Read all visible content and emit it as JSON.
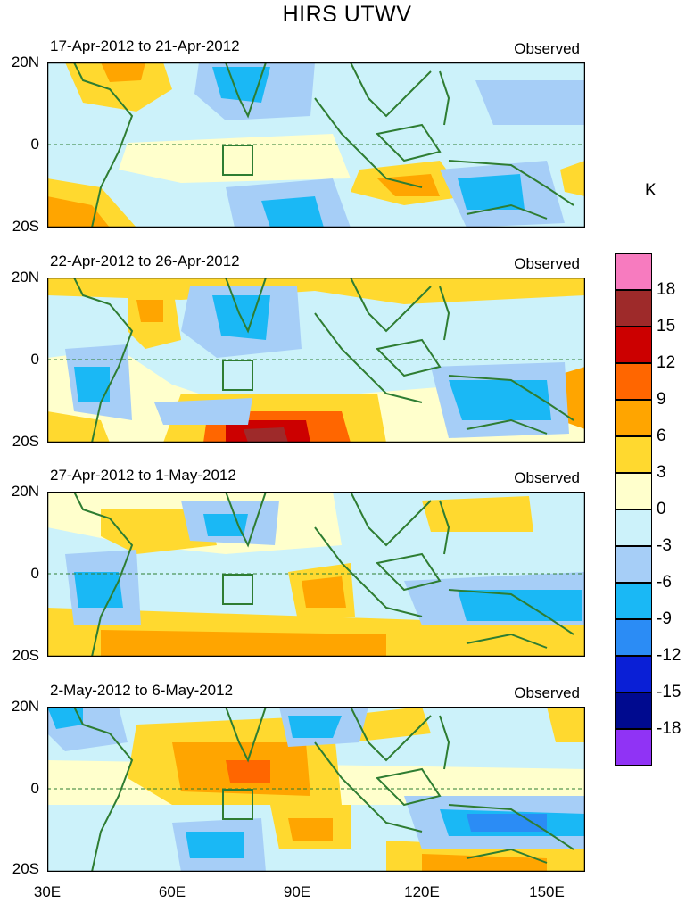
{
  "title": "HIRS UTWV",
  "unit": "K",
  "y_axis_labels": [
    "20N",
    "0",
    "20S"
  ],
  "x_axis_labels": [
    "30E",
    "60E",
    "90E",
    "120E",
    "150E"
  ],
  "panels": [
    {
      "date_range": "17-Apr-2012 to 21-Apr-2012",
      "type": "Observed"
    },
    {
      "date_range": "22-Apr-2012 to 26-Apr-2012",
      "type": "Observed"
    },
    {
      "date_range": "27-Apr-2012 to 1-May-2012",
      "type": "Observed"
    },
    {
      "date_range": "2-May-2012 to 6-May-2012",
      "type": "Observed"
    }
  ],
  "colorbar": {
    "labels": [
      "18",
      "15",
      "12",
      "9",
      "6",
      "3",
      "0",
      "-3",
      "-6",
      "-9",
      "-12",
      "-15",
      "-18"
    ],
    "colors": [
      "#f77bbf",
      "#9e2a2a",
      "#cc0000",
      "#ff6600",
      "#ffa500",
      "#ffd92f",
      "#ffffcc",
      "#ccf2fa",
      "#a6cef7",
      "#1ab8f5",
      "#2b8cf5",
      "#0a1fd6",
      "#000a8f",
      "#9033f5"
    ]
  }
}
